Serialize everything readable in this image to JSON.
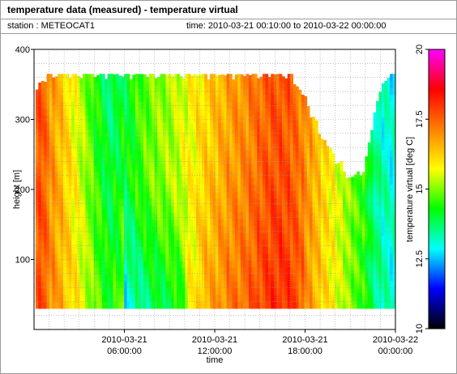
{
  "header": {
    "title": "temperature data (measured) - temperature virtual",
    "station_label": "station : METEOCAT1",
    "time_label": "time: 2010-03-21 00:10:00 to 2010-03-22 00:00:00"
  },
  "chart_data": {
    "type": "heatmap",
    "title": "temperature data (measured) - temperature virtual",
    "xlabel": "time",
    "ylabel": "height [m]",
    "colorbar_label": "temperature virtual [deg C]",
    "x_ticks": [
      {
        "value_hours": 6,
        "line1": "2010-03-21",
        "line2": "06:00:00"
      },
      {
        "value_hours": 12,
        "line1": "2010-03-21",
        "line2": "12:00:00"
      },
      {
        "value_hours": 18,
        "line1": "2010-03-21",
        "line2": "18:00:00"
      },
      {
        "value_hours": 24,
        "line1": "2010-03-22",
        "line2": "00:00:00"
      }
    ],
    "x_range_hours": [
      0,
      24
    ],
    "y_ticks": [
      100,
      200,
      300,
      400
    ],
    "ylim": [
      0,
      400
    ],
    "colorbar_ticks": [
      "10",
      "12.5",
      "15",
      "17.5",
      "20"
    ],
    "colorbar_range": [
      10,
      20
    ],
    "grid": true,
    "colormap_stops": [
      "#000000",
      "#0000ff",
      "#00ffff",
      "#00ff00",
      "#ffff00",
      "#ff8000",
      "#ff0000",
      "#ff00ff"
    ],
    "data_height_range": [
      30,
      365
    ],
    "time_profile": [
      {
        "h": 0.0,
        "t": 17.2,
        "top": 335
      },
      {
        "h": 0.5,
        "t": 17.8,
        "top": 355
      },
      {
        "h": 1.0,
        "t": 17.0,
        "top": 365
      },
      {
        "h": 2.0,
        "t": 16.2,
        "top": 365
      },
      {
        "h": 3.0,
        "t": 15.4,
        "top": 365
      },
      {
        "h": 4.0,
        "t": 14.4,
        "top": 365
      },
      {
        "h": 5.0,
        "t": 13.6,
        "top": 365
      },
      {
        "h": 6.0,
        "t": 14.0,
        "top": 365
      },
      {
        "h": 7.0,
        "t": 14.6,
        "top": 365
      },
      {
        "h": 8.0,
        "t": 15.0,
        "top": 365
      },
      {
        "h": 9.0,
        "t": 15.2,
        "top": 365
      },
      {
        "h": 10.0,
        "t": 15.6,
        "top": 365
      },
      {
        "h": 11.0,
        "t": 16.0,
        "top": 365
      },
      {
        "h": 12.0,
        "t": 16.4,
        "top": 365
      },
      {
        "h": 13.0,
        "t": 16.8,
        "top": 365
      },
      {
        "h": 14.0,
        "t": 17.0,
        "top": 365
      },
      {
        "h": 15.0,
        "t": 17.4,
        "top": 365
      },
      {
        "h": 16.0,
        "t": 17.7,
        "top": 365
      },
      {
        "h": 17.0,
        "t": 17.6,
        "top": 365
      },
      {
        "h": 18.0,
        "t": 17.0,
        "top": 330
      },
      {
        "h": 19.0,
        "t": 16.3,
        "top": 280
      },
      {
        "h": 20.0,
        "t": 15.7,
        "top": 245
      },
      {
        "h": 21.0,
        "t": 15.0,
        "top": 215
      },
      {
        "h": 22.0,
        "t": 14.4,
        "top": 230
      },
      {
        "h": 22.5,
        "t": 13.7,
        "top": 300
      },
      {
        "h": 23.0,
        "t": 13.4,
        "top": 340
      },
      {
        "h": 23.5,
        "t": 13.2,
        "top": 365
      },
      {
        "h": 24.0,
        "t": 13.0,
        "top": 365
      }
    ]
  }
}
